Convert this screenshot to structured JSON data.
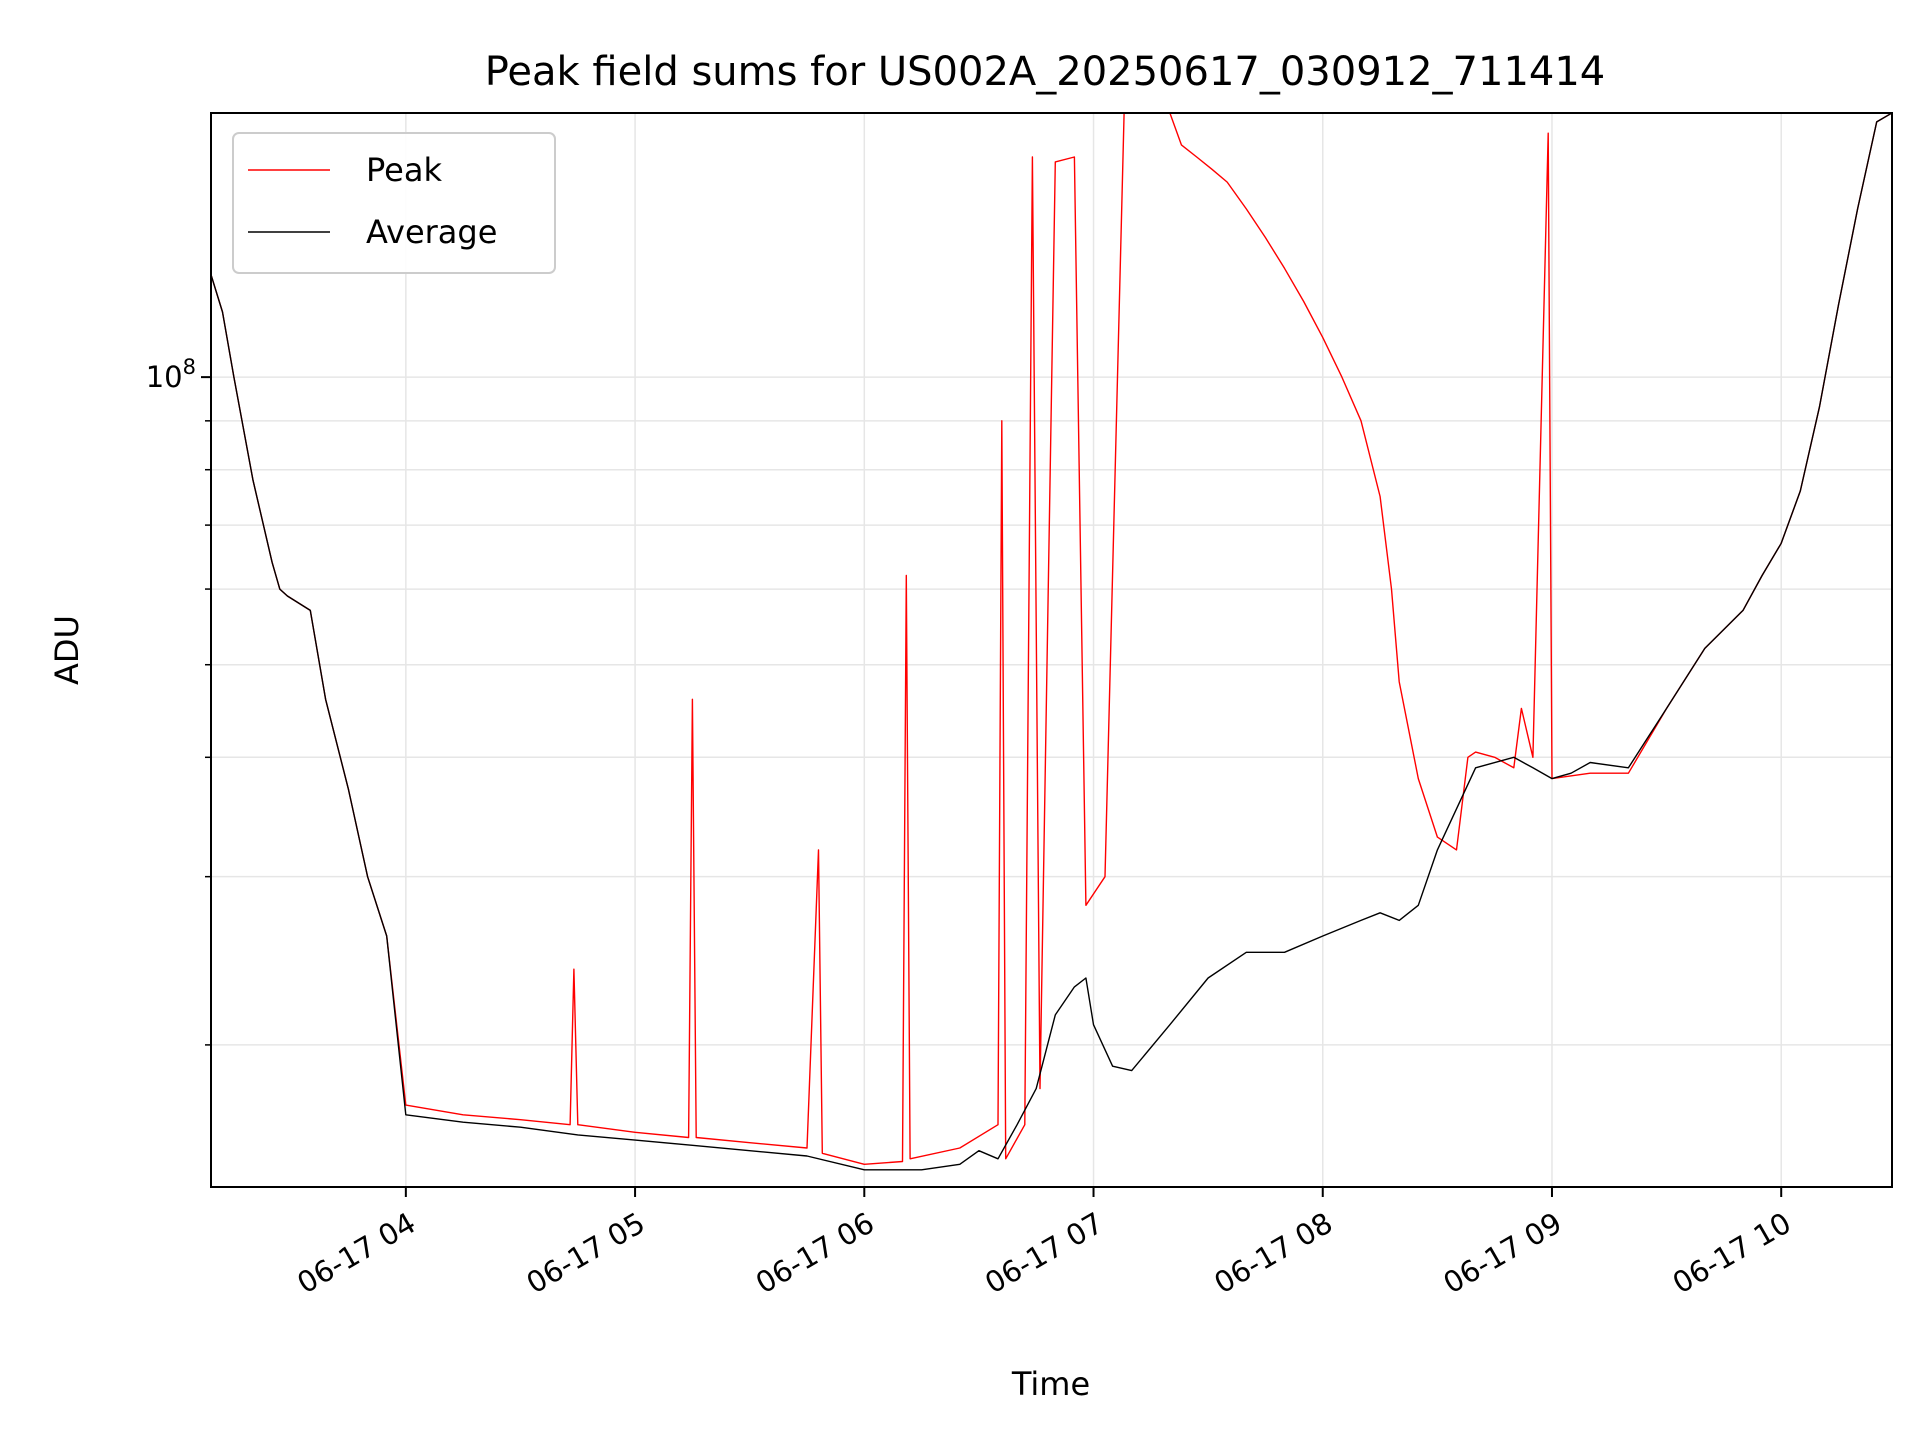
{
  "chart_data": {
    "type": "line",
    "title": "Peak field sums for US002A_20250617_030912_711414",
    "xlabel": "Time",
    "ylabel": "ADU",
    "x_ticks": [
      "06-17 04",
      "06-17 05",
      "06-17 06",
      "06-17 07",
      "06-17 08",
      "06-17 09",
      "06-17 10"
    ],
    "y_tick_label": {
      "base": "10",
      "exp": "8"
    },
    "y_scale": "log",
    "xlim": [
      "2025-06-17 03:09",
      "2025-06-17 10:29"
    ],
    "ylim": [
      14200000,
      189000000
    ],
    "grid": true,
    "legend_position": "upper-left",
    "colors": {
      "peak": "#ff0000",
      "average": "#000000",
      "grid": "#e6e6e6"
    },
    "series": [
      {
        "name": "Peak",
        "color": "#ff0000",
        "x": [
          "2025-06-17 03:09",
          "2025-06-17 03:12",
          "2025-06-17 03:15",
          "2025-06-17 03:20",
          "2025-06-17 03:25",
          "2025-06-17 03:27",
          "2025-06-17 03:29",
          "2025-06-17 03:35",
          "2025-06-17 03:39",
          "2025-06-17 03:45",
          "2025-06-17 03:50",
          "2025-06-17 03:55",
          "2025-06-17 04:00",
          "2025-06-17 04:15",
          "2025-06-17 04:30",
          "2025-06-17 04:43",
          "2025-06-17 04:44",
          "2025-06-17 04:45",
          "2025-06-17 05:00",
          "2025-06-17 05:14",
          "2025-06-17 05:15",
          "2025-06-17 05:16",
          "2025-06-17 05:30",
          "2025-06-17 05:45",
          "2025-06-17 05:48",
          "2025-06-17 05:49",
          "2025-06-17 06:00",
          "2025-06-17 06:10",
          "2025-06-17 06:11",
          "2025-06-17 06:12",
          "2025-06-17 06:25",
          "2025-06-17 06:35",
          "2025-06-17 06:36",
          "2025-06-17 06:37",
          "2025-06-17 06:42",
          "2025-06-17 06:44",
          "2025-06-17 06:46",
          "2025-06-17 06:50",
          "2025-06-17 06:55",
          "2025-06-17 06:58",
          "2025-06-17 07:03",
          "2025-06-17 07:08",
          "2025-06-17 07:13",
          "2025-06-17 07:16",
          "2025-06-17 07:20",
          "2025-06-17 07:23",
          "2025-06-17 07:27",
          "2025-06-17 07:31",
          "2025-06-17 07:35",
          "2025-06-17 07:40",
          "2025-06-17 07:45",
          "2025-06-17 07:50",
          "2025-06-17 07:55",
          "2025-06-17 08:00",
          "2025-06-17 08:05",
          "2025-06-17 08:10",
          "2025-06-17 08:15",
          "2025-06-17 08:18",
          "2025-06-17 08:20",
          "2025-06-17 08:25",
          "2025-06-17 08:30",
          "2025-06-17 08:35",
          "2025-06-17 08:38",
          "2025-06-17 08:40",
          "2025-06-17 08:45",
          "2025-06-17 08:50",
          "2025-06-17 08:52",
          "2025-06-17 08:55",
          "2025-06-17 08:59",
          "2025-06-17 09:00",
          "2025-06-17 09:10",
          "2025-06-17 09:20",
          "2025-06-17 09:30",
          "2025-06-17 09:40",
          "2025-06-17 09:50",
          "2025-06-17 09:55",
          "2025-06-17 10:00",
          "2025-06-17 10:05",
          "2025-06-17 10:10",
          "2025-06-17 10:15",
          "2025-06-17 10:20",
          "2025-06-17 10:25",
          "2025-06-17 10:29"
        ],
        "values": [
          128000000,
          117000000,
          100000000,
          78000000,
          64000000,
          60000000,
          59000000,
          57000000,
          46000000,
          37000000,
          30000000,
          26000000,
          17300000,
          16900000,
          16700000,
          16500000,
          24000000,
          16500000,
          16200000,
          16000000,
          46000000,
          16000000,
          15800000,
          15600000,
          32000000,
          15400000,
          15000000,
          15100000,
          62000000,
          15200000,
          15600000,
          16500000,
          90000000,
          15200000,
          16500000,
          170000000,
          18000000,
          168000000,
          170000000,
          28000000,
          30000000,
          189000000,
          189000000,
          189000000,
          189000000,
          175000000,
          170000000,
          165000000,
          160000000,
          150000000,
          140000000,
          130000000,
          120000000,
          110000000,
          100000000,
          90000000,
          75000000,
          60000000,
          48000000,
          38000000,
          33000000,
          32000000,
          40000000,
          40500000,
          40000000,
          39000000,
          45000000,
          40000000,
          180000000,
          38000000,
          38500000,
          38500000,
          45000000,
          52000000,
          57000000,
          62000000,
          67000000,
          76000000,
          93000000,
          119000000,
          150000000,
          185000000,
          189000000
        ]
      },
      {
        "name": "Average",
        "color": "#000000",
        "x": [
          "2025-06-17 03:09",
          "2025-06-17 03:12",
          "2025-06-17 03:15",
          "2025-06-17 03:20",
          "2025-06-17 03:25",
          "2025-06-17 03:27",
          "2025-06-17 03:29",
          "2025-06-17 03:35",
          "2025-06-17 03:39",
          "2025-06-17 03:45",
          "2025-06-17 03:50",
          "2025-06-17 03:55",
          "2025-06-17 04:00",
          "2025-06-17 04:15",
          "2025-06-17 04:30",
          "2025-06-17 04:45",
          "2025-06-17 05:00",
          "2025-06-17 05:15",
          "2025-06-17 05:30",
          "2025-06-17 05:45",
          "2025-06-17 06:00",
          "2025-06-17 06:15",
          "2025-06-17 06:25",
          "2025-06-17 06:30",
          "2025-06-17 06:35",
          "2025-06-17 06:40",
          "2025-06-17 06:45",
          "2025-06-17 06:50",
          "2025-06-17 06:55",
          "2025-06-17 06:58",
          "2025-06-17 07:00",
          "2025-06-17 07:05",
          "2025-06-17 07:10",
          "2025-06-17 07:20",
          "2025-06-17 07:30",
          "2025-06-17 07:40",
          "2025-06-17 07:50",
          "2025-06-17 08:00",
          "2025-06-17 08:10",
          "2025-06-17 08:15",
          "2025-06-17 08:20",
          "2025-06-17 08:25",
          "2025-06-17 08:30",
          "2025-06-17 08:40",
          "2025-06-17 08:50",
          "2025-06-17 08:55",
          "2025-06-17 09:00",
          "2025-06-17 09:05",
          "2025-06-17 09:10",
          "2025-06-17 09:20",
          "2025-06-17 09:30",
          "2025-06-17 09:40",
          "2025-06-17 09:50",
          "2025-06-17 09:55",
          "2025-06-17 10:00",
          "2025-06-17 10:05",
          "2025-06-17 10:10",
          "2025-06-17 10:15",
          "2025-06-17 10:20",
          "2025-06-17 10:25",
          "2025-06-17 10:29"
        ],
        "values": [
          128000000,
          117000000,
          100000000,
          78000000,
          64000000,
          60000000,
          59000000,
          57000000,
          46000000,
          37000000,
          30000000,
          26000000,
          16900000,
          16600000,
          16400000,
          16100000,
          15900000,
          15700000,
          15500000,
          15300000,
          14800000,
          14800000,
          15000000,
          15500000,
          15200000,
          16500000,
          18000000,
          21500000,
          23000000,
          23500000,
          21000000,
          19000000,
          18800000,
          21000000,
          23500000,
          25000000,
          25000000,
          26000000,
          27000000,
          27500000,
          27000000,
          28000000,
          32000000,
          39000000,
          40000000,
          39000000,
          38000000,
          38500000,
          39500000,
          39000000,
          45000000,
          52000000,
          57000000,
          62000000,
          67000000,
          76000000,
          93000000,
          119000000,
          150000000,
          185000000,
          189000000
        ]
      }
    ]
  },
  "legend": {
    "items": [
      {
        "label": "Peak",
        "color": "#ff0000"
      },
      {
        "label": "Average",
        "color": "#000000"
      }
    ]
  }
}
